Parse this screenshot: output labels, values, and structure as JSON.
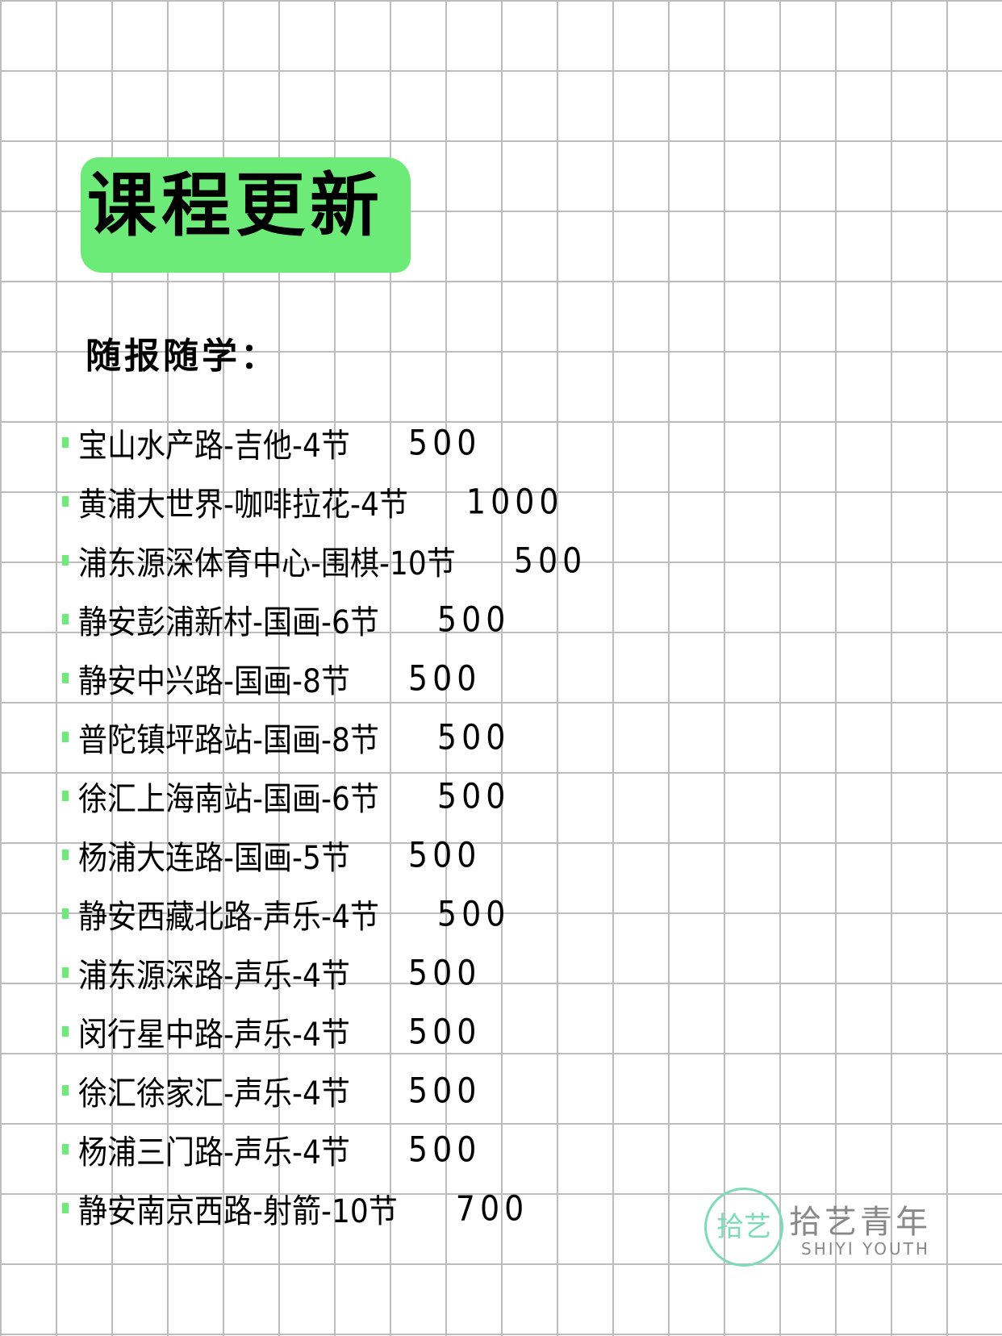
{
  "title": "课程更新",
  "subtitle": "随报随学：",
  "colors": {
    "accent": "#6ceb78",
    "grid": "#bdbdbd",
    "logo": "#7ddcb6"
  },
  "courses": [
    {
      "name": "宝山水产路-吉他-4节",
      "price": "500"
    },
    {
      "name": "黄浦大世界-咖啡拉花-4节",
      "price": "1000"
    },
    {
      "name": "浦东源深体育中心-围棋-10节",
      "price": "500"
    },
    {
      "name": "静安彭浦新村-国画-6节",
      "price": "500"
    },
    {
      "name": "静安中兴路-国画-8节",
      "price": "500"
    },
    {
      "name": "普陀镇坪路站-国画-8节",
      "price": "500"
    },
    {
      "name": "徐汇上海南站-国画-6节",
      "price": "500"
    },
    {
      "name": "杨浦大连路-国画-5节",
      "price": "500"
    },
    {
      "name": "静安西藏北路-声乐-4节",
      "price": "500"
    },
    {
      "name": "浦东源深路-声乐-4节",
      "price": "500"
    },
    {
      "name": "闵行星中路-声乐-4节",
      "price": "500"
    },
    {
      "name": "徐汇徐家汇-声乐-4节",
      "price": "500"
    },
    {
      "name": "杨浦三门路-声乐-4节",
      "price": "500"
    },
    {
      "name": "静安南京西路-射箭-10节",
      "price": "700"
    }
  ],
  "logo": {
    "mark": "拾艺",
    "cn": "拾艺青年",
    "en": "SHIYI YOUTH"
  }
}
